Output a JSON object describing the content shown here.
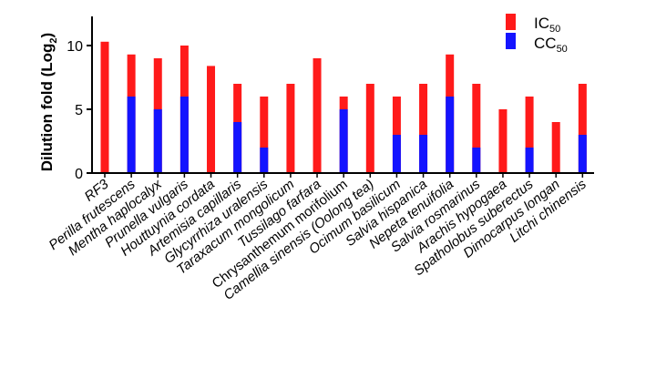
{
  "chart_data": {
    "type": "bar",
    "ylabel_main": "Dilution fold (Log",
    "ylabel_sub": "2",
    "ylabel_end": ")",
    "ylim": [
      0,
      12
    ],
    "yticks": [
      "0",
      "5",
      "10"
    ],
    "grid": false,
    "legend_position": "top-right",
    "categories": [
      "RF3",
      "Perilla frutescens",
      "Mentha haplocalyx",
      "Prunella vulgaris",
      "Houttuynia cordata",
      "Artemisia capillaris",
      "Glycyrrhiza uralensis",
      "Taraxacum mongolicum",
      "Tussilago farfara",
      "Chrysanthemum morifolium",
      "Camellia sinensis  (Oolong tea)",
      "Ocimum basilicum",
      "Salvia hispanica",
      "Nepeta tenuifolia",
      "Salvia rosmarinus",
      "Arachis hypogaea",
      "Spatholobus suberectus",
      "Dimocarpus longan",
      "Litchi chinensis"
    ],
    "series": [
      {
        "name": "IC",
        "name_sub": "50",
        "color": "#ff1a1a",
        "values": [
          10.3,
          9.3,
          9.0,
          10.0,
          8.4,
          7.0,
          6.0,
          7.0,
          9.0,
          6.0,
          7.0,
          6.0,
          7.0,
          9.3,
          7.0,
          5.0,
          6.0,
          4.0,
          7.0
        ]
      },
      {
        "name": "CC",
        "name_sub": "50",
        "color": "#1414ff",
        "values": [
          0,
          6.0,
          5.0,
          6.0,
          0,
          4.0,
          2.0,
          0,
          0,
          5.0,
          0,
          3.0,
          3.0,
          6.0,
          2.0,
          0,
          2.0,
          0,
          3.0
        ]
      }
    ]
  }
}
